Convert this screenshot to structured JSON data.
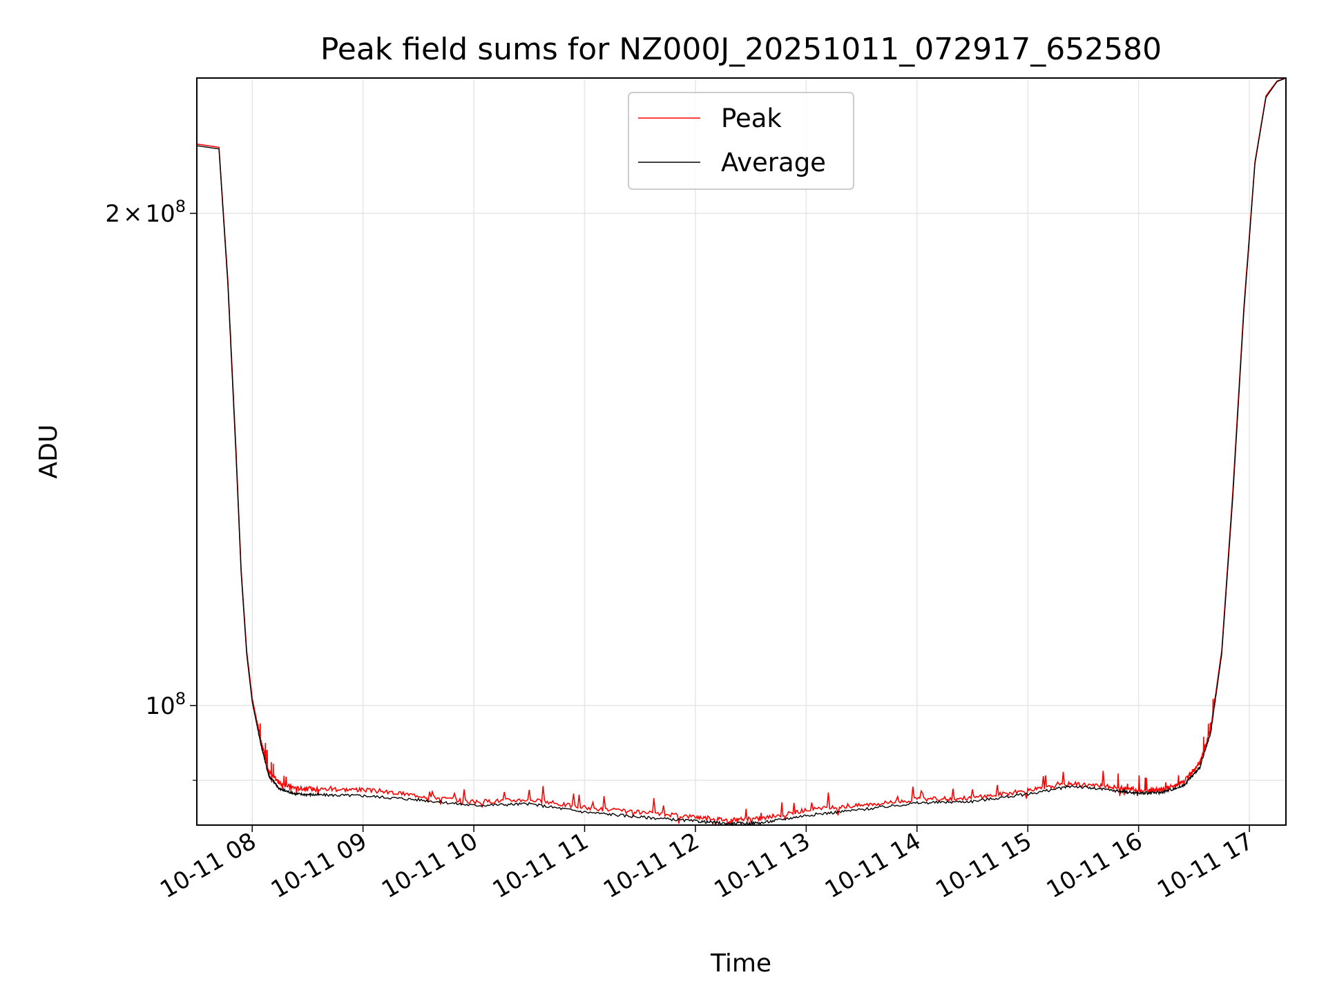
{
  "chart_data": {
    "type": "line",
    "title": "Peak field sums for NZ000J_20251011_072917_652580",
    "xlabel": "Time",
    "ylabel": "ADU",
    "yscale": "log",
    "ylim": [
      84500000,
      242000000
    ],
    "xlim": [
      7.5,
      17.33
    ],
    "grid": true,
    "legend_loc": "upper center",
    "x_ticks": [
      {
        "value": 8,
        "label": "10-11 08"
      },
      {
        "value": 9,
        "label": "10-11 09"
      },
      {
        "value": 10,
        "label": "10-11 10"
      },
      {
        "value": 11,
        "label": "10-11 11"
      },
      {
        "value": 12,
        "label": "10-11 12"
      },
      {
        "value": 13,
        "label": "10-11 13"
      },
      {
        "value": 14,
        "label": "10-11 14"
      },
      {
        "value": 15,
        "label": "10-11 15"
      },
      {
        "value": 16,
        "label": "10-11 16"
      },
      {
        "value": 17,
        "label": "10-11 17"
      }
    ],
    "y_ticks": [
      {
        "value": 100000000,
        "base": "10",
        "exp": "8",
        "label": "10^8"
      },
      {
        "value": 200000000,
        "mant": "2",
        "times": "×",
        "base": "10",
        "exp": "8",
        "label": "2×10^8"
      }
    ],
    "y_minor_ticks": [
      90000000
    ],
    "series": [
      {
        "name": "Peak",
        "color": "#ff0000",
        "x": [
          7.5,
          7.7,
          7.78,
          7.85,
          7.9,
          7.95,
          8.0,
          8.08,
          8.15,
          8.25,
          8.4,
          8.6,
          9.0,
          9.5,
          10.0,
          10.5,
          11.0,
          11.5,
          12.0,
          12.3,
          12.6,
          13.0,
          13.5,
          14.0,
          14.5,
          15.0,
          15.4,
          15.8,
          16.0,
          16.2,
          16.4,
          16.55,
          16.65,
          16.75,
          16.85,
          16.95,
          17.05,
          17.15,
          17.25,
          17.33
        ],
        "values": [
          220500000,
          219500000,
          182000000,
          145000000,
          121000000,
          108000000,
          101000000,
          95000000,
          91000000,
          89500000,
          88900000,
          88800000,
          88700000,
          88000000,
          87200000,
          87500000,
          86500000,
          85900000,
          85400000,
          85000000,
          85200000,
          86200000,
          86800000,
          87500000,
          87700000,
          88600000,
          89500000,
          89000000,
          88600000,
          88700000,
          89600000,
          92000000,
          96500000,
          108000000,
          135000000,
          175000000,
          215000000,
          236000000,
          241000000,
          242000000
        ]
      },
      {
        "name": "Average",
        "color": "#000000",
        "x": [
          7.5,
          7.7,
          7.78,
          7.85,
          7.9,
          7.95,
          8.0,
          8.08,
          8.15,
          8.25,
          8.4,
          8.6,
          9.0,
          9.5,
          10.0,
          10.5,
          11.0,
          11.5,
          12.0,
          12.3,
          12.6,
          13.0,
          13.5,
          14.0,
          14.5,
          15.0,
          15.4,
          15.8,
          16.0,
          16.2,
          16.4,
          16.55,
          16.65,
          16.75,
          16.85,
          16.95,
          17.05,
          17.15,
          17.25,
          17.33
        ],
        "values": [
          220000000,
          219000000,
          181000000,
          144000000,
          120500000,
          107500000,
          100500000,
          94500000,
          90500000,
          88800000,
          88200000,
          88100000,
          88000000,
          87500000,
          86800000,
          87000000,
          86000000,
          85400000,
          84900000,
          84600000,
          84700000,
          85600000,
          86300000,
          87100000,
          87300000,
          88200000,
          89200000,
          88600000,
          88300000,
          88400000,
          89200000,
          91500000,
          96000000,
          107500000,
          134000000,
          174000000,
          214500000,
          235500000,
          240800000,
          242000000
        ]
      }
    ]
  }
}
